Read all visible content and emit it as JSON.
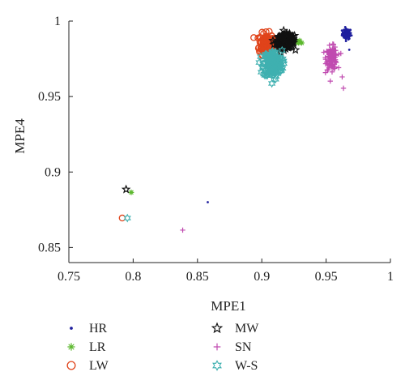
{
  "chart_data": {
    "type": "scatter",
    "xlabel": "MPE1",
    "ylabel": "MPE4",
    "xlim": [
      0.75,
      1
    ],
    "ylim": [
      0.84,
      1
    ],
    "xticks": [
      "0.75",
      "0.8",
      "0.85",
      "0.9",
      "0.95",
      "1"
    ],
    "yticks": [
      "0.85",
      "0.9",
      "0.95",
      "1"
    ],
    "grid": false,
    "legend_placement": "below",
    "series": [
      {
        "name": "HR",
        "marker": "dot",
        "color": "#1f1f9e",
        "outliers": [
          [
            0.858,
            0.88
          ],
          [
            0.968,
            0.981
          ]
        ],
        "clusters": [
          {
            "cx": 0.966,
            "cy": 0.9915,
            "sx": 0.0018,
            "sy": 0.0018,
            "n": 80
          }
        ]
      },
      {
        "name": "LR",
        "marker": "asterisk",
        "color": "#5cb82e",
        "outliers": [
          [
            0.7985,
            0.8865
          ],
          [
            0.931,
            0.9855
          ]
        ],
        "clusters": [
          {
            "cx": 0.925,
            "cy": 0.986,
            "sx": 0.003,
            "sy": 0.0012,
            "n": 10
          }
        ]
      },
      {
        "name": "LW",
        "marker": "circle",
        "color": "#e0431a",
        "outliers": [
          [
            0.7915,
            0.8695
          ]
        ],
        "clusters": [
          {
            "cx": 0.9035,
            "cy": 0.985,
            "sx": 0.0028,
            "sy": 0.0035,
            "n": 140
          }
        ]
      },
      {
        "name": "MW",
        "marker": "star",
        "color": "#111111",
        "outliers": [
          [
            0.7945,
            0.8885
          ]
        ],
        "clusters": [
          {
            "cx": 0.9185,
            "cy": 0.9865,
            "sx": 0.0034,
            "sy": 0.0022,
            "n": 200
          }
        ]
      },
      {
        "name": "SN",
        "marker": "plus",
        "color": "#c04bb0",
        "outliers": [
          [
            0.8385,
            0.8615
          ],
          [
            0.9635,
            0.9555
          ],
          [
            0.9625,
            0.963
          ],
          [
            0.9505,
            0.98
          ]
        ],
        "clusters": [
          {
            "cx": 0.9545,
            "cy": 0.9755,
            "sx": 0.0022,
            "sy": 0.0038,
            "n": 110
          }
        ]
      },
      {
        "name": "W-S",
        "marker": "hexagram",
        "color": "#3fb0b0",
        "outliers": [
          [
            0.7955,
            0.8695
          ]
        ],
        "clusters": [
          {
            "cx": 0.9085,
            "cy": 0.9715,
            "sx": 0.0036,
            "sy": 0.0045,
            "n": 180
          }
        ]
      }
    ]
  }
}
